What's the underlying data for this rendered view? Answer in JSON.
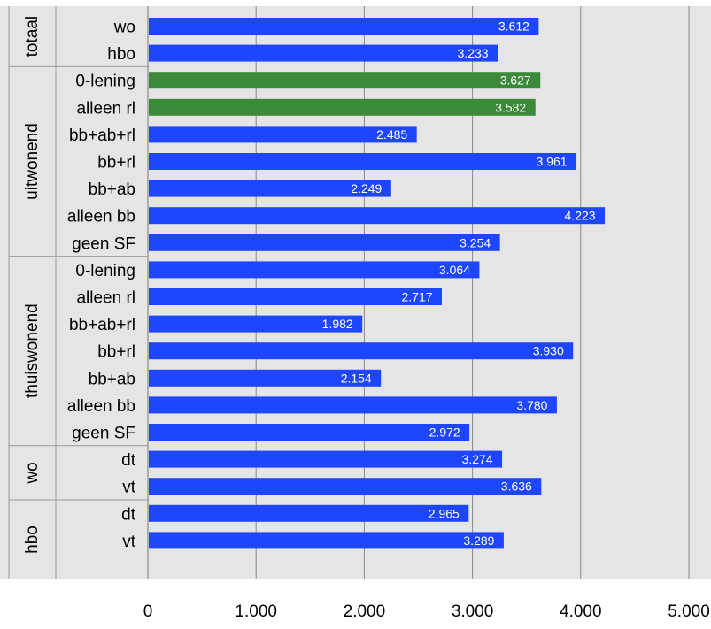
{
  "chart_data": {
    "type": "bar",
    "orientation": "horizontal",
    "xlim": [
      0,
      5000
    ],
    "x_ticks": [
      0,
      1000,
      2000,
      3000,
      4000,
      5000
    ],
    "x_tick_labels": [
      "0",
      "1.000",
      "2.000",
      "3.000",
      "4.000",
      "5.000"
    ],
    "grid": true,
    "groups": [
      {
        "label": "totaal",
        "categories": [
          {
            "label": "wo",
            "value": 3612,
            "value_label": "3.612",
            "color": "#1f46ff"
          },
          {
            "label": "hbo",
            "value": 3233,
            "value_label": "3.233",
            "color": "#1f46ff"
          }
        ]
      },
      {
        "label": "uitwonend",
        "categories": [
          {
            "label": "0-lening",
            "value": 3627,
            "value_label": "3.627",
            "color": "#3a8a3a"
          },
          {
            "label": "alleen rl",
            "value": 3582,
            "value_label": "3.582",
            "color": "#3a8a3a"
          },
          {
            "label": "bb+ab+rl",
            "value": 2485,
            "value_label": "2.485",
            "color": "#1f46ff"
          },
          {
            "label": "bb+rl",
            "value": 3961,
            "value_label": "3.961",
            "color": "#1f46ff"
          },
          {
            "label": "bb+ab",
            "value": 2249,
            "value_label": "2.249",
            "color": "#1f46ff"
          },
          {
            "label": "alleen bb",
            "value": 4223,
            "value_label": "4.223",
            "color": "#1f46ff"
          },
          {
            "label": "geen SF",
            "value": 3254,
            "value_label": "3.254",
            "color": "#1f46ff"
          }
        ]
      },
      {
        "label": "thuiswonend",
        "categories": [
          {
            "label": "0-lening",
            "value": 3064,
            "value_label": "3.064",
            "color": "#1f46ff"
          },
          {
            "label": "alleen rl",
            "value": 2717,
            "value_label": "2.717",
            "color": "#1f46ff"
          },
          {
            "label": "bb+ab+rl",
            "value": 1982,
            "value_label": "1.982",
            "color": "#1f46ff"
          },
          {
            "label": "bb+rl",
            "value": 3930,
            "value_label": "3.930",
            "color": "#1f46ff"
          },
          {
            "label": "bb+ab",
            "value": 2154,
            "value_label": "2.154",
            "color": "#1f46ff"
          },
          {
            "label": "alleen bb",
            "value": 3780,
            "value_label": "3.780",
            "color": "#1f46ff"
          },
          {
            "label": "geen SF",
            "value": 2972,
            "value_label": "2.972",
            "color": "#1f46ff"
          }
        ]
      },
      {
        "label": "wo",
        "categories": [
          {
            "label": "dt",
            "value": 3274,
            "value_label": "3.274",
            "color": "#1f46ff"
          },
          {
            "label": "vt",
            "value": 3636,
            "value_label": "3.636",
            "color": "#1f46ff"
          }
        ]
      },
      {
        "label": "hbo",
        "categories": [
          {
            "label": "dt",
            "value": 2965,
            "value_label": "2.965",
            "color": "#1f46ff"
          },
          {
            "label": "vt",
            "value": 3289,
            "value_label": "3.289",
            "color": "#1f46ff"
          }
        ]
      }
    ],
    "colors": {
      "plot_background": "#e5e5e5",
      "gridline": "#888888",
      "bar_blue": "#1f46ff",
      "bar_green": "#3a8a3a",
      "data_label_text": "#ffffff"
    }
  }
}
